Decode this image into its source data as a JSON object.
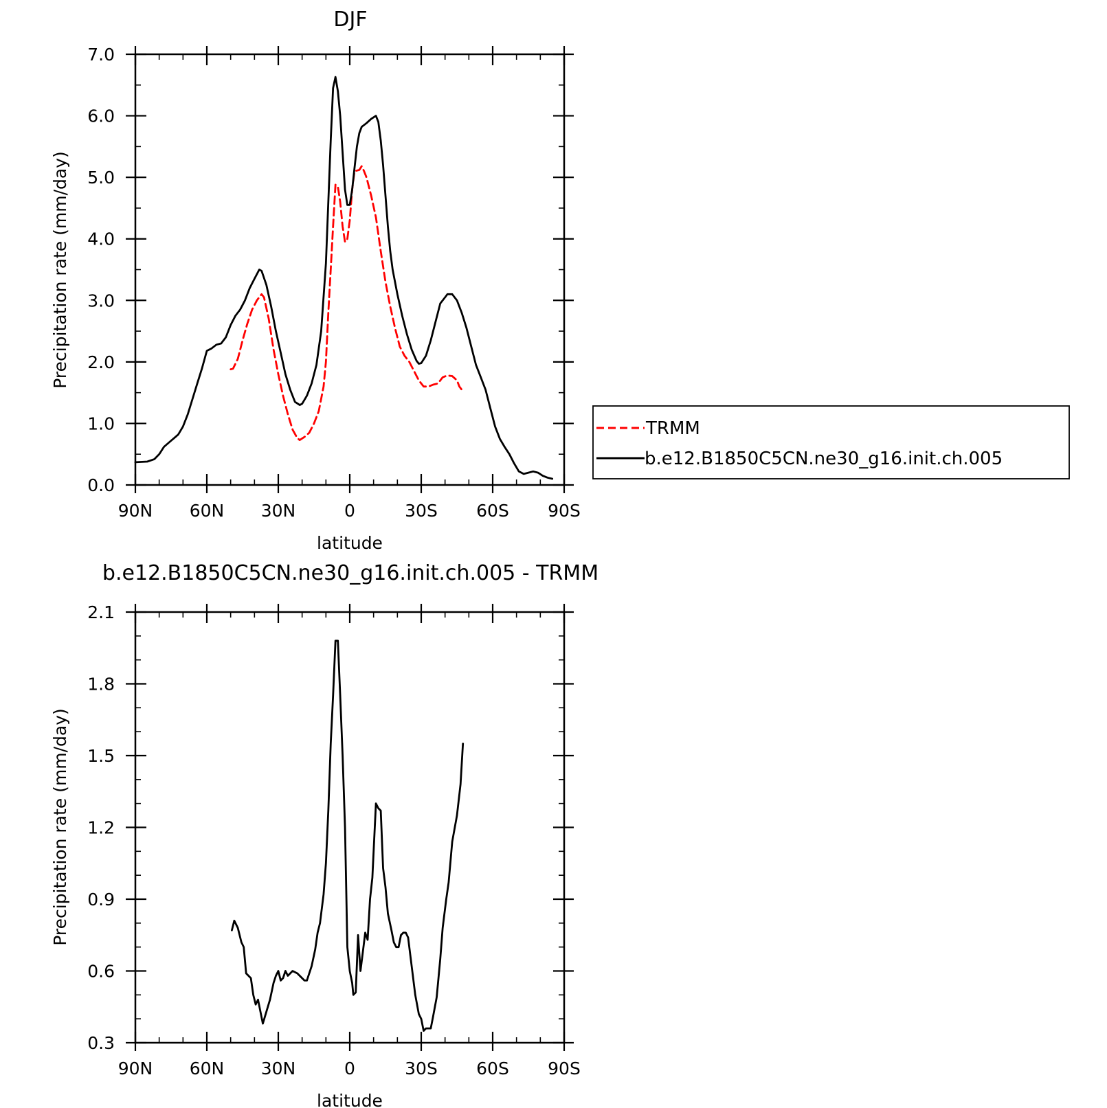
{
  "chart_data": [
    {
      "type": "line",
      "title": "DJF",
      "xlabel": "latitude",
      "ylabel": "Precipitation rate (mm/day)",
      "xlim": [
        90,
        -90
      ],
      "ylim": [
        0,
        7
      ],
      "x_ticks": [
        {
          "value": 90,
          "label": "90N"
        },
        {
          "value": 60,
          "label": "60N"
        },
        {
          "value": 30,
          "label": "30N"
        },
        {
          "value": 0,
          "label": "0"
        },
        {
          "value": -30,
          "label": "30S"
        },
        {
          "value": -60,
          "label": "60S"
        },
        {
          "value": -90,
          "label": "90S"
        }
      ],
      "y_ticks": [
        {
          "value": 0,
          "label": "0.0"
        },
        {
          "value": 1,
          "label": "1.0"
        },
        {
          "value": 2,
          "label": "2.0"
        },
        {
          "value": 3,
          "label": "3.0"
        },
        {
          "value": 4,
          "label": "4.0"
        },
        {
          "value": 5,
          "label": "5.0"
        },
        {
          "value": 6,
          "label": "6.0"
        },
        {
          "value": 7,
          "label": "7.0"
        }
      ],
      "grid": false,
      "legend_position": "right",
      "series": [
        {
          "name": "TRMM",
          "color": "#ff0000",
          "style": "dashed",
          "points": [
            [
              50,
              1.88
            ],
            [
              49,
              1.89
            ],
            [
              47,
              2.05
            ],
            [
              45,
              2.35
            ],
            [
              43,
              2.62
            ],
            [
              41,
              2.85
            ],
            [
              39,
              3.0
            ],
            [
              37,
              3.1
            ],
            [
              36,
              3.05
            ],
            [
              34,
              2.7
            ],
            [
              32,
              2.2
            ],
            [
              30,
              1.8
            ],
            [
              28,
              1.45
            ],
            [
              26,
              1.15
            ],
            [
              24,
              0.9
            ],
            [
              22,
              0.76
            ],
            [
              21,
              0.73
            ],
            [
              19,
              0.78
            ],
            [
              17,
              0.85
            ],
            [
              15,
              1.0
            ],
            [
              13,
              1.2
            ],
            [
              11,
              1.6
            ],
            [
              10,
              2.0
            ],
            [
              9,
              2.8
            ],
            [
              8,
              3.5
            ],
            [
              7,
              4.2
            ],
            [
              6,
              4.88
            ],
            [
              5,
              4.85
            ],
            [
              4,
              4.6
            ],
            [
              3,
              4.2
            ],
            [
              2,
              3.95
            ],
            [
              1,
              4.0
            ],
            [
              0,
              4.3
            ],
            [
              -1,
              4.8
            ],
            [
              -2,
              5.1
            ],
            [
              -4,
              5.12
            ],
            [
              -5,
              5.18
            ],
            [
              -6,
              5.1
            ],
            [
              -7,
              5.0
            ],
            [
              -9,
              4.7
            ],
            [
              -11,
              4.35
            ],
            [
              -13,
              3.8
            ],
            [
              -15,
              3.3
            ],
            [
              -17,
              2.9
            ],
            [
              -19,
              2.55
            ],
            [
              -21,
              2.25
            ],
            [
              -23,
              2.1
            ],
            [
              -25,
              2.0
            ],
            [
              -27,
              1.85
            ],
            [
              -29,
              1.7
            ],
            [
              -31,
              1.6
            ],
            [
              -33,
              1.6
            ],
            [
              -35,
              1.63
            ],
            [
              -37,
              1.65
            ],
            [
              -39,
              1.75
            ],
            [
              -41,
              1.78
            ],
            [
              -43,
              1.77
            ],
            [
              -45,
              1.7
            ],
            [
              -46,
              1.6
            ],
            [
              -47,
              1.55
            ]
          ]
        },
        {
          "name": "b.e12.B1850C5CN.ne30_g16.init.ch.005",
          "color": "#000000",
          "style": "solid",
          "points": [
            [
              90,
              0.37
            ],
            [
              85,
              0.38
            ],
            [
              82,
              0.42
            ],
            [
              80,
              0.5
            ],
            [
              78,
              0.62
            ],
            [
              75,
              0.72
            ],
            [
              72,
              0.82
            ],
            [
              70,
              0.95
            ],
            [
              68,
              1.15
            ],
            [
              66,
              1.4
            ],
            [
              64,
              1.65
            ],
            [
              62,
              1.9
            ],
            [
              60,
              2.18
            ],
            [
              58,
              2.22
            ],
            [
              56,
              2.28
            ],
            [
              54,
              2.3
            ],
            [
              52,
              2.4
            ],
            [
              50,
              2.6
            ],
            [
              48,
              2.75
            ],
            [
              46,
              2.85
            ],
            [
              44,
              3.0
            ],
            [
              42,
              3.2
            ],
            [
              40,
              3.35
            ],
            [
              38,
              3.5
            ],
            [
              37,
              3.48
            ],
            [
              35,
              3.25
            ],
            [
              33,
              2.9
            ],
            [
              31,
              2.5
            ],
            [
              29,
              2.15
            ],
            [
              27,
              1.8
            ],
            [
              25,
              1.55
            ],
            [
              23,
              1.35
            ],
            [
              21,
              1.3
            ],
            [
              20,
              1.32
            ],
            [
              18,
              1.45
            ],
            [
              16,
              1.65
            ],
            [
              14,
              1.95
            ],
            [
              12,
              2.5
            ],
            [
              10,
              3.6
            ],
            [
              9,
              4.6
            ],
            [
              8,
              5.6
            ],
            [
              7,
              6.45
            ],
            [
              6,
              6.63
            ],
            [
              5,
              6.4
            ],
            [
              4,
              6.0
            ],
            [
              3,
              5.4
            ],
            [
              2,
              4.8
            ],
            [
              1,
              4.55
            ],
            [
              0,
              4.55
            ],
            [
              -1,
              4.8
            ],
            [
              -2,
              5.15
            ],
            [
              -3,
              5.5
            ],
            [
              -4,
              5.72
            ],
            [
              -5,
              5.82
            ],
            [
              -7,
              5.88
            ],
            [
              -9,
              5.95
            ],
            [
              -11,
              6.0
            ],
            [
              -12,
              5.9
            ],
            [
              -13,
              5.6
            ],
            [
              -14,
              5.2
            ],
            [
              -15,
              4.7
            ],
            [
              -16,
              4.2
            ],
            [
              -17,
              3.8
            ],
            [
              -18,
              3.5
            ],
            [
              -20,
              3.1
            ],
            [
              -22,
              2.75
            ],
            [
              -24,
              2.45
            ],
            [
              -26,
              2.2
            ],
            [
              -28,
              2.02
            ],
            [
              -29,
              1.97
            ],
            [
              -30,
              1.98
            ],
            [
              -32,
              2.1
            ],
            [
              -34,
              2.35
            ],
            [
              -36,
              2.65
            ],
            [
              -38,
              2.95
            ],
            [
              -40,
              3.05
            ],
            [
              -41,
              3.1
            ],
            [
              -43,
              3.1
            ],
            [
              -45,
              3.0
            ],
            [
              -47,
              2.8
            ],
            [
              -49,
              2.55
            ],
            [
              -51,
              2.25
            ],
            [
              -53,
              1.95
            ],
            [
              -55,
              1.75
            ],
            [
              -57,
              1.55
            ],
            [
              -59,
              1.25
            ],
            [
              -61,
              0.95
            ],
            [
              -63,
              0.75
            ],
            [
              -65,
              0.62
            ],
            [
              -67,
              0.5
            ],
            [
              -69,
              0.35
            ],
            [
              -71,
              0.22
            ],
            [
              -73,
              0.18
            ],
            [
              -75,
              0.2
            ],
            [
              -77,
              0.22
            ],
            [
              -79,
              0.2
            ],
            [
              -81,
              0.15
            ],
            [
              -83,
              0.12
            ],
            [
              -85,
              0.1
            ]
          ]
        }
      ]
    },
    {
      "type": "line",
      "title": "b.e12.B1850C5CN.ne30_g16.init.ch.005 - TRMM",
      "xlabel": "latitude",
      "ylabel": "Precipitation rate (mm/day)",
      "xlim": [
        90,
        -90
      ],
      "ylim": [
        0.3,
        2.1
      ],
      "x_ticks": [
        {
          "value": 90,
          "label": "90N"
        },
        {
          "value": 60,
          "label": "60N"
        },
        {
          "value": 30,
          "label": "30N"
        },
        {
          "value": 0,
          "label": "0"
        },
        {
          "value": -30,
          "label": "30S"
        },
        {
          "value": -60,
          "label": "60S"
        },
        {
          "value": -90,
          "label": "90S"
        }
      ],
      "y_ticks": [
        {
          "value": 0.3,
          "label": "0.3"
        },
        {
          "value": 0.6,
          "label": "0.6"
        },
        {
          "value": 0.9,
          "label": "0.9"
        },
        {
          "value": 1.2,
          "label": "1.2"
        },
        {
          "value": 1.5,
          "label": "1.5"
        },
        {
          "value": 1.8,
          "label": "1.8"
        },
        {
          "value": 2.1,
          "label": "2.1"
        }
      ],
      "grid": false,
      "series": [
        {
          "name": "",
          "color": "#000000",
          "style": "solid",
          "points": [
            [
              49.5,
              0.77
            ],
            [
              48.5,
              0.81
            ],
            [
              47,
              0.78
            ],
            [
              45.5,
              0.72
            ],
            [
              44.5,
              0.7
            ],
            [
              43.5,
              0.59
            ],
            [
              41.5,
              0.57
            ],
            [
              40.5,
              0.5
            ],
            [
              39.5,
              0.46
            ],
            [
              38.5,
              0.48
            ],
            [
              36.5,
              0.38
            ],
            [
              35,
              0.43
            ],
            [
              33.5,
              0.48
            ],
            [
              32,
              0.55
            ],
            [
              31,
              0.58
            ],
            [
              30,
              0.6
            ],
            [
              29,
              0.56
            ],
            [
              28,
              0.57
            ],
            [
              27,
              0.6
            ],
            [
              26,
              0.58
            ],
            [
              24,
              0.6
            ],
            [
              22,
              0.59
            ],
            [
              20,
              0.57
            ],
            [
              19,
              0.56
            ],
            [
              18,
              0.56
            ],
            [
              16,
              0.62
            ],
            [
              14.5,
              0.69
            ],
            [
              13.5,
              0.76
            ],
            [
              12.5,
              0.8
            ],
            [
              11,
              0.92
            ],
            [
              10,
              1.05
            ],
            [
              9,
              1.27
            ],
            [
              8,
              1.55
            ],
            [
              7,
              1.75
            ],
            [
              6,
              1.98
            ],
            [
              5,
              1.98
            ],
            [
              4,
              1.75
            ],
            [
              3,
              1.5
            ],
            [
              2,
              1.2
            ],
            [
              1,
              0.7
            ],
            [
              0,
              0.6
            ],
            [
              -1,
              0.55
            ],
            [
              -1.5,
              0.5
            ],
            [
              -2.5,
              0.51
            ],
            [
              -3.5,
              0.75
            ],
            [
              -4.5,
              0.6
            ],
            [
              -5.5,
              0.68
            ],
            [
              -6.5,
              0.76
            ],
            [
              -7.5,
              0.73
            ],
            [
              -8.5,
              0.9
            ],
            [
              -9.5,
              0.99
            ],
            [
              -10.5,
              1.2
            ],
            [
              -11,
              1.3
            ],
            [
              -12,
              1.28
            ],
            [
              -13,
              1.27
            ],
            [
              -14,
              1.03
            ],
            [
              -15,
              0.95
            ],
            [
              -16,
              0.84
            ],
            [
              -17.5,
              0.77
            ],
            [
              -18.5,
              0.72
            ],
            [
              -19.5,
              0.7
            ],
            [
              -20.5,
              0.7
            ],
            [
              -21.5,
              0.75
            ],
            [
              -22.5,
              0.76
            ],
            [
              -23.5,
              0.76
            ],
            [
              -24.5,
              0.74
            ],
            [
              -26,
              0.62
            ],
            [
              -27.5,
              0.5
            ],
            [
              -29,
              0.42
            ],
            [
              -30,
              0.4
            ],
            [
              -31,
              0.35
            ],
            [
              -32,
              0.36
            ],
            [
              -34,
              0.36
            ],
            [
              -35,
              0.41
            ],
            [
              -36.5,
              0.49
            ],
            [
              -38,
              0.65
            ],
            [
              -39,
              0.78
            ],
            [
              -40.5,
              0.9
            ],
            [
              -41.5,
              0.97
            ],
            [
              -43,
              1.14
            ],
            [
              -45,
              1.25
            ],
            [
              -46.5,
              1.38
            ],
            [
              -47.5,
              1.55
            ]
          ]
        }
      ]
    }
  ]
}
